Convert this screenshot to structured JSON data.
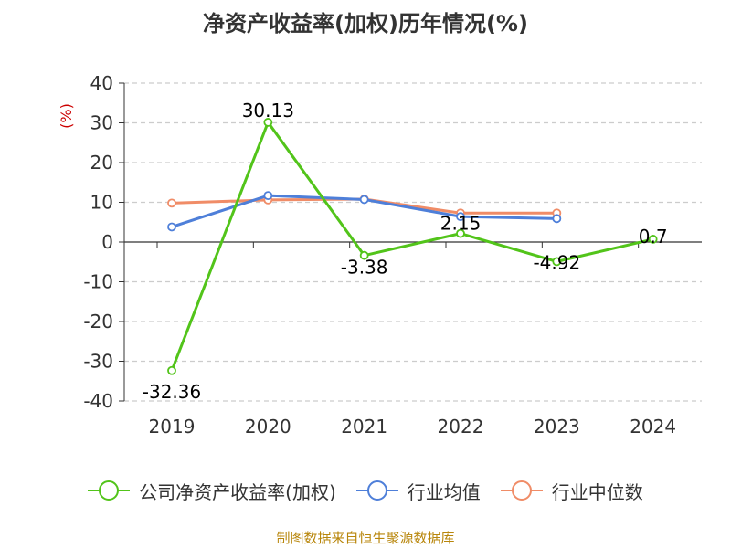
{
  "chart_title": "净资产收益率(加权)历年情况(%)",
  "source_text": "制图数据来自恒生聚源数据库",
  "chart_data": {
    "type": "line",
    "title": "净资产收益率(加权)历年情况(%)",
    "ylabel": "(%)",
    "xlabel": "",
    "categories": [
      "2019",
      "2020",
      "2021",
      "2022",
      "2023",
      "2024"
    ],
    "ylim": [
      -40,
      40
    ],
    "yticks": [
      40,
      30,
      20,
      10,
      0,
      -10,
      -20,
      -30,
      -40
    ],
    "grid": true,
    "legend_position": "bottom",
    "series": [
      {
        "name": "公司净资产收益率(加权)",
        "color": "#52c41a",
        "values": [
          -32.36,
          30.13,
          -3.38,
          2.15,
          -4.92,
          0.7
        ],
        "labels": [
          "-32.36",
          "30.13",
          "-3.38",
          "2.15",
          "-4.92",
          "0.7"
        ]
      },
      {
        "name": "行业均值",
        "color": "#4e7fd9",
        "values": [
          3.8,
          11.7,
          10.7,
          6.4,
          5.9,
          null
        ]
      },
      {
        "name": "行业中位数",
        "color": "#f08c67",
        "values": [
          9.8,
          10.6,
          10.8,
          7.3,
          7.3,
          null
        ]
      }
    ]
  }
}
